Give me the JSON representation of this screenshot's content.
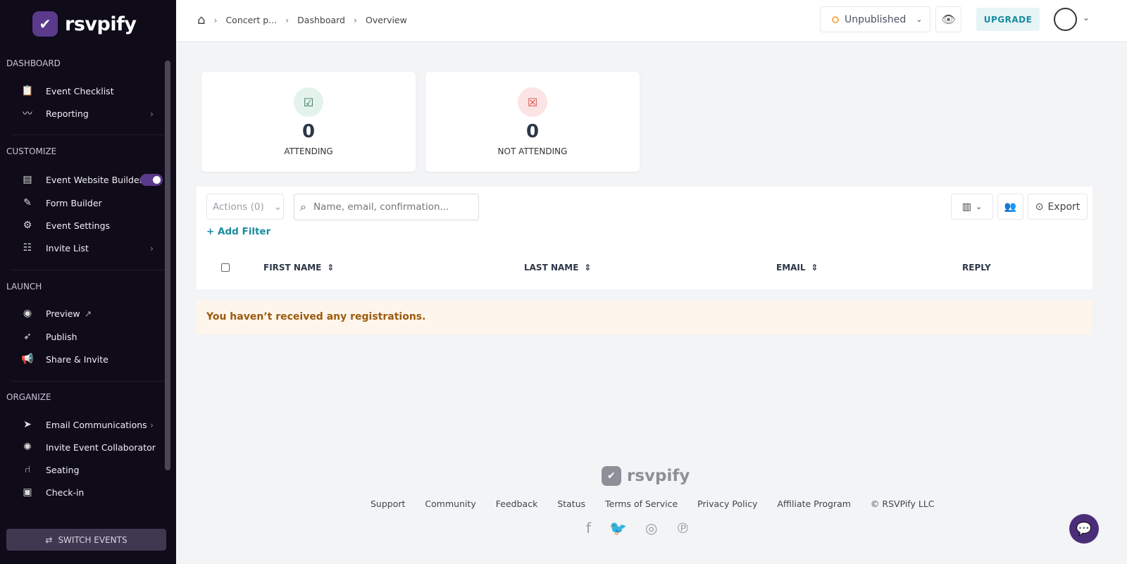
{
  "brand": {
    "name": "rsvpify",
    "accent": "#5b3a8c",
    "teal": "#1a8ca0"
  },
  "sidebar": {
    "sections": [
      {
        "title": "DASHBOARD",
        "items": [
          {
            "label": "Event Checklist",
            "icon": "clipboard-check-icon"
          },
          {
            "label": "Reporting",
            "icon": "chart-icon",
            "chevron": true
          }
        ]
      },
      {
        "title": "CUSTOMIZE",
        "items": [
          {
            "label": "Event Website Builder",
            "icon": "website-icon",
            "toggle": true
          },
          {
            "label": "Form Builder",
            "icon": "edit-icon"
          },
          {
            "label": "Event Settings",
            "icon": "gear-icon"
          },
          {
            "label": "Invite List",
            "icon": "invite-list-icon",
            "chevron": true
          }
        ]
      },
      {
        "title": "LAUNCH",
        "items": [
          {
            "label": "Preview",
            "icon": "eye-icon"
          },
          {
            "label": "Publish",
            "icon": "rocket-icon"
          },
          {
            "label": "Share & Invite",
            "icon": "megaphone-icon"
          }
        ]
      },
      {
        "title": "ORGANIZE",
        "items": [
          {
            "label": "Email Communications",
            "icon": "send-icon",
            "chevron": true
          },
          {
            "label": "Invite Event Collaborator",
            "icon": "collaborator-icon"
          },
          {
            "label": "Seating",
            "icon": "chair-icon"
          },
          {
            "label": "Check-in",
            "icon": "qr-icon"
          }
        ]
      }
    ],
    "switch_events": "SWITCH EVENTS"
  },
  "breadcrumb": [
    "Concert p...",
    "Dashboard",
    "Overview"
  ],
  "header": {
    "status": "Unpublished",
    "upgrade": "UPGRADE"
  },
  "stats": [
    {
      "value": "0",
      "label": "ATTENDING"
    },
    {
      "value": "0",
      "label": "NOT ATTENDING"
    }
  ],
  "table": {
    "actions": "Actions (0)",
    "search_placeholder": "Name, email, confirmation...",
    "export": "Export",
    "add_filter": "Add Filter",
    "columns": [
      "FIRST NAME",
      "LAST NAME",
      "EMAIL",
      "REPLY"
    ]
  },
  "notice": "You haven’t received any registrations.",
  "footer": {
    "logo": "rsvpify",
    "links": [
      "Support",
      "Community",
      "Feedback",
      "Status",
      "Terms of Service",
      "Privacy Policy",
      "Affiliate Program",
      "© RSVPify LLC"
    ]
  }
}
